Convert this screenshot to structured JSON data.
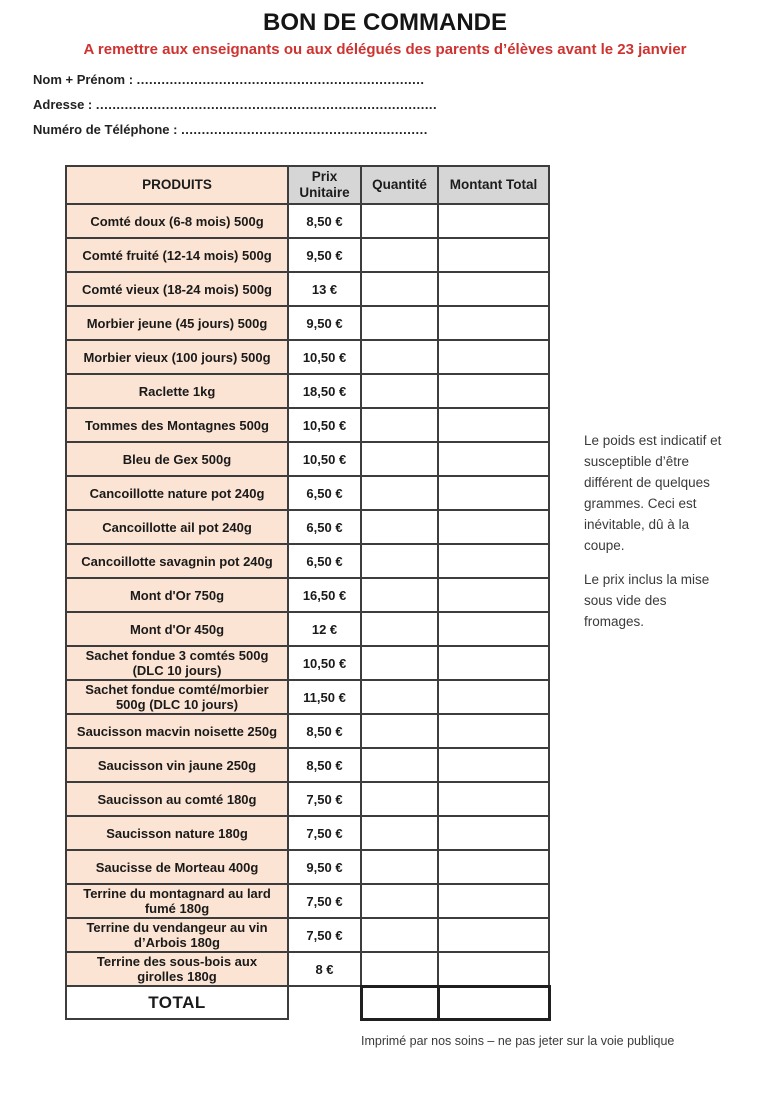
{
  "page": {
    "title": "BON DE COMMANDE",
    "subtitle": "A remettre aux enseignants ou aux délégués des parents d’élèves avant le 23 janvier",
    "footer": "Imprimé par nos soins – ne pas jeter sur la voie publique"
  },
  "form": {
    "fields": [
      {
        "label": "Nom + Prénom :",
        "dots": "......................................................................"
      },
      {
        "label": "Adresse :",
        "dots": "..................................................................................."
      },
      {
        "label": "Numéro de Téléphone :",
        "dots": "............................................................"
      }
    ]
  },
  "table": {
    "columns": [
      "PRODUITS",
      "Prix Unitaire",
      "Quantité",
      "Montant Total"
    ],
    "rows": [
      {
        "product": "Comté doux (6-8 mois) 500g",
        "price": "8,50 €",
        "quantity": "",
        "total": ""
      },
      {
        "product": "Comté fruité (12-14 mois) 500g",
        "price": "9,50 €",
        "quantity": "",
        "total": ""
      },
      {
        "product": "Comté vieux (18-24 mois) 500g",
        "price": "13 €",
        "quantity": "",
        "total": ""
      },
      {
        "product": "Morbier jeune (45 jours) 500g",
        "price": "9,50 €",
        "quantity": "",
        "total": ""
      },
      {
        "product": "Morbier vieux (100 jours) 500g",
        "price": "10,50 €",
        "quantity": "",
        "total": ""
      },
      {
        "product": "Raclette 1kg",
        "price": "18,50 €",
        "quantity": "",
        "total": ""
      },
      {
        "product": "Tommes des Montagnes 500g",
        "price": "10,50 €",
        "quantity": "",
        "total": ""
      },
      {
        "product": "Bleu de Gex 500g",
        "price": "10,50 €",
        "quantity": "",
        "total": ""
      },
      {
        "product": "Cancoillotte nature pot 240g",
        "price": "6,50 €",
        "quantity": "",
        "total": ""
      },
      {
        "product": "Cancoillotte ail pot 240g",
        "price": "6,50 €",
        "quantity": "",
        "total": ""
      },
      {
        "product": "Cancoillotte savagnin pot 240g",
        "price": "6,50 €",
        "quantity": "",
        "total": ""
      },
      {
        "product": "Mont d'Or 750g",
        "price": "16,50 €",
        "quantity": "",
        "total": ""
      },
      {
        "product": "Mont d'Or 450g",
        "price": "12 €",
        "quantity": "",
        "total": ""
      },
      {
        "product": "Sachet fondue 3 comtés 500g\n(DLC 10 jours)",
        "price": "10,50 €",
        "quantity": "",
        "total": ""
      },
      {
        "product": "Sachet fondue comté/morbier\n500g (DLC 10 jours)",
        "price": "11,50 €",
        "quantity": "",
        "total": ""
      },
      {
        "product": "Saucisson macvin noisette 250g",
        "price": "8,50 €",
        "quantity": "",
        "total": ""
      },
      {
        "product": "Saucisson vin jaune 250g",
        "price": "8,50 €",
        "quantity": "",
        "total": ""
      },
      {
        "product": "Saucisson au comté 180g",
        "price": "7,50 €",
        "quantity": "",
        "total": ""
      },
      {
        "product": "Saucisson nature 180g",
        "price": "7,50 €",
        "quantity": "",
        "total": ""
      },
      {
        "product": "Saucisse de Morteau 400g",
        "price": "9,50 €",
        "quantity": "",
        "total": ""
      },
      {
        "product": "Terrine du montagnard au lard\nfumé 180g",
        "price": "7,50 €",
        "quantity": "",
        "total": ""
      },
      {
        "product": "Terrine du vendangeur au vin\nd’Arbois 180g",
        "price": "7,50 €",
        "quantity": "",
        "total": ""
      },
      {
        "product": "Terrine des sous-bois aux\ngirolles 180g",
        "price": "8 €",
        "quantity": "",
        "total": ""
      }
    ],
    "total_label": "TOTAL",
    "total_quantity": "",
    "total_amount": ""
  },
  "side_note": {
    "p1": "Le poids est indicatif et susceptible d’être différent de quelques grammes. Ceci est inévitable, dû à la coupe.",
    "p2": "Le prix inclus la mise sous vide des fromages."
  },
  "colors": {
    "accent_red": "#cd3431",
    "product_bg": "#fbe4d3",
    "header_bg": "#d6d6d6"
  }
}
